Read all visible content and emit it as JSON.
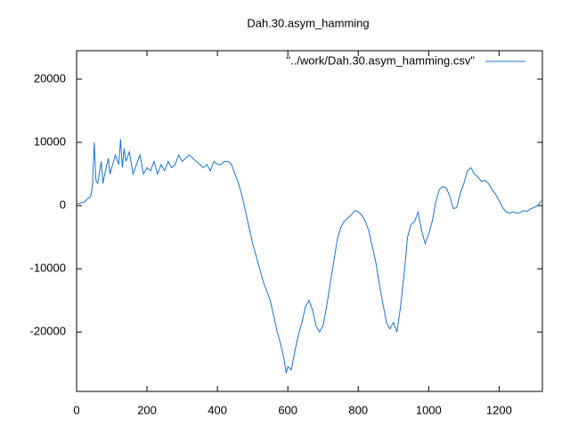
{
  "chart_data": {
    "type": "line",
    "title": "Dah.30.asym_hamming",
    "xlim": [
      0,
      1323
    ],
    "ylim": [
      -29400,
      24500
    ],
    "xticks": [
      0,
      200,
      400,
      600,
      800,
      1000,
      1200
    ],
    "yticks": [
      -20000,
      -10000,
      0,
      10000,
      20000
    ],
    "legend": "top-right",
    "series": [
      {
        "name": "\"../work/Dah.30.asym_hamming.csv\"",
        "color": "#1874cd",
        "x": [
          0,
          20,
          40,
          45,
          50,
          55,
          60,
          70,
          75,
          80,
          90,
          95,
          100,
          110,
          120,
          125,
          130,
          135,
          140,
          150,
          160,
          170,
          180,
          190,
          200,
          210,
          220,
          230,
          240,
          250,
          260,
          270,
          280,
          290,
          300,
          310,
          320,
          330,
          340,
          350,
          360,
          370,
          380,
          390,
          400,
          410,
          420,
          430,
          440,
          450,
          460,
          470,
          480,
          490,
          500,
          510,
          520,
          530,
          540,
          550,
          560,
          570,
          580,
          590,
          595,
          600,
          610,
          620,
          630,
          640,
          650,
          660,
          670,
          680,
          690,
          700,
          710,
          720,
          730,
          740,
          750,
          760,
          770,
          780,
          790,
          800,
          810,
          820,
          830,
          840,
          850,
          860,
          870,
          880,
          890,
          900,
          910,
          920,
          930,
          940,
          950,
          960,
          970,
          980,
          990,
          1000,
          1010,
          1020,
          1030,
          1040,
          1050,
          1060,
          1070,
          1080,
          1090,
          1100,
          1110,
          1120,
          1130,
          1140,
          1150,
          1160,
          1170,
          1180,
          1190,
          1200,
          1210,
          1220,
          1230,
          1240,
          1250,
          1260,
          1270,
          1280,
          1290,
          1300,
          1310,
          1320
        ],
        "values": [
          300,
          500,
          1500,
          3000,
          10000,
          4000,
          3500,
          7000,
          3500,
          5000,
          7500,
          5000,
          6000,
          8000,
          6500,
          10500,
          6000,
          9000,
          7000,
          8500,
          5000,
          6500,
          8000,
          5000,
          6000,
          5500,
          7000,
          5000,
          6500,
          5500,
          7000,
          6000,
          6500,
          8000,
          7000,
          7500,
          8000,
          7500,
          7000,
          6500,
          6000,
          6500,
          5500,
          7000,
          6500,
          6500,
          7000,
          7000,
          6500,
          5000,
          3500,
          1500,
          -1000,
          -3500,
          -6000,
          -8000,
          -10000,
          -12000,
          -13500,
          -15000,
          -17500,
          -20000,
          -22000,
          -24500,
          -26500,
          -25500,
          -26000,
          -23000,
          -20500,
          -18500,
          -16000,
          -15000,
          -16500,
          -19000,
          -20000,
          -19000,
          -16000,
          -12500,
          -9000,
          -5500,
          -3500,
          -2500,
          -2000,
          -1500,
          -800,
          -1000,
          -1500,
          -2500,
          -4000,
          -6500,
          -9000,
          -12500,
          -15500,
          -18500,
          -19500,
          -18500,
          -20000,
          -16000,
          -11000,
          -5000,
          -3000,
          -2500,
          -1000,
          -4000,
          -6000,
          -4500,
          -2500,
          500,
          2500,
          3000,
          2800,
          1500,
          -500,
          -300,
          2000,
          3500,
          5500,
          6000,
          5000,
          4500,
          3800,
          4000,
          3500,
          2500,
          1800,
          800,
          -300,
          -1000,
          -1200,
          -1000,
          -1200,
          -1100,
          -800,
          -900,
          -500,
          -300,
          0,
          800
        ]
      }
    ]
  }
}
